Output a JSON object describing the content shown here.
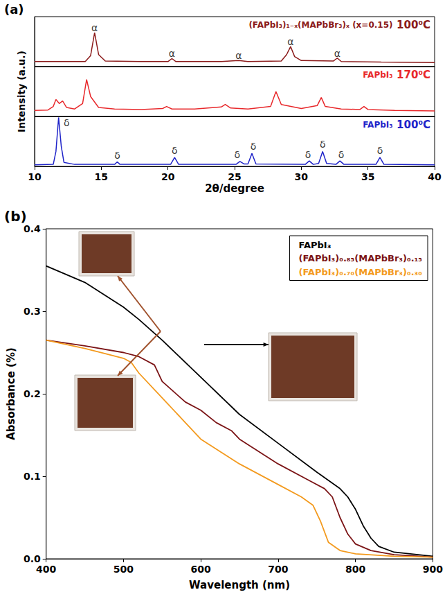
{
  "chart_data": [
    {
      "type": "line",
      "panel_label": "(a)",
      "x_label": "2θ/degree",
      "y_label": "Intensity (a.u.)",
      "xlim": [
        10,
        40
      ],
      "xticks": [
        10,
        15,
        20,
        25,
        30,
        35,
        40
      ],
      "ylim": [
        0,
        100
      ],
      "tick_labels": "x",
      "series": [
        {
          "name": "(FAPbI₃)₁₋ₓ(MAPbBr₃)ₓ (x=0.15)",
          "temperature": "100⁰C",
          "color": "#8b1a1a",
          "x": [
            10,
            12,
            13.8,
            14.2,
            14.5,
            14.8,
            15.3,
            18,
            20,
            20.3,
            20.6,
            24,
            25.3,
            26,
            28.5,
            28.9,
            29.2,
            29.5,
            30,
            32.4,
            32.7,
            33,
            36,
            40
          ],
          "values": [
            10,
            10,
            10,
            22,
            68,
            24,
            11,
            10,
            10,
            16,
            10,
            10,
            12,
            10,
            11,
            24,
            40,
            20,
            12,
            11,
            17,
            10,
            9,
            8
          ],
          "peaks": [
            {
              "x": 14.5,
              "y": 78,
              "label": "α"
            },
            {
              "x": 20.3,
              "y": 26,
              "label": "α"
            },
            {
              "x": 25.3,
              "y": 22,
              "label": "α"
            },
            {
              "x": 29.2,
              "y": 50,
              "label": "α"
            },
            {
              "x": 32.7,
              "y": 27,
              "label": "α"
            }
          ]
        },
        {
          "name": "FAPbI₃",
          "temperature": "170⁰C",
          "color": "#e8282b",
          "x": [
            10,
            11,
            11.4,
            11.6,
            11.85,
            12.1,
            12.4,
            13,
            13.6,
            13.9,
            14.2,
            14.8,
            16,
            18,
            19.6,
            19.9,
            20.3,
            22,
            24,
            24.3,
            24.7,
            26,
            27.7,
            28.1,
            28.5,
            30,
            31.2,
            31.5,
            31.8,
            33,
            34.4,
            34.7,
            35,
            37,
            40
          ],
          "values": [
            12,
            13,
            20,
            34,
            26,
            31,
            18,
            15,
            26,
            74,
            40,
            18,
            15,
            14,
            16,
            20,
            15,
            15,
            19,
            24,
            17,
            15,
            20,
            50,
            24,
            16,
            22,
            38,
            20,
            15,
            14,
            20,
            14,
            12,
            11
          ]
        },
        {
          "name": "FAPbI₃",
          "temperature": "100⁰C",
          "color": "#1f24c9",
          "x": [
            10,
            11.4,
            11.6,
            11.8,
            12.0,
            12.2,
            13,
            16,
            16.2,
            16.4,
            20.2,
            20.5,
            20.8,
            25.1,
            25.4,
            25.7,
            26.0,
            26.3,
            26.6,
            30.3,
            30.6,
            30.9,
            31.3,
            31.6,
            31.9,
            32.6,
            32.9,
            33.2,
            35.6,
            35.9,
            36.2,
            40
          ],
          "values": [
            3,
            4,
            30,
            98,
            40,
            8,
            4,
            4,
            9,
            4,
            4,
            18,
            4,
            4,
            10,
            5,
            5,
            26,
            5,
            4,
            11,
            4,
            6,
            30,
            6,
            4,
            11,
            4,
            4,
            18,
            4,
            3
          ],
          "peaks": [
            {
              "x": 12.4,
              "y": 88,
              "label": "δ"
            },
            {
              "x": 16.2,
              "y": 22,
              "label": "δ"
            },
            {
              "x": 20.5,
              "y": 32,
              "label": "δ"
            },
            {
              "x": 25.2,
              "y": 24,
              "label": "δ"
            },
            {
              "x": 26.4,
              "y": 40,
              "label": "δ"
            },
            {
              "x": 30.5,
              "y": 24,
              "label": "δ"
            },
            {
              "x": 31.6,
              "y": 44,
              "label": "δ"
            },
            {
              "x": 33.0,
              "y": 24,
              "label": "δ"
            },
            {
              "x": 35.9,
              "y": 32,
              "label": "δ"
            }
          ]
        }
      ]
    },
    {
      "type": "line",
      "panel_label": "(b)",
      "x_label": "Wavelength (nm)",
      "y_label": "Absorbance (%)",
      "xlim": [
        400,
        900
      ],
      "xticks": [
        400,
        500,
        600,
        700,
        800,
        900
      ],
      "ylim": [
        0,
        0.4
      ],
      "yticks": [
        {
          "value": 0,
          "label": "0.0"
        },
        0.1,
        0.2,
        0.3,
        0.4
      ],
      "legend": "top-right",
      "series": [
        {
          "name": "FAPbI₃",
          "color": "#000000",
          "x": [
            400,
            450,
            500,
            520,
            550,
            600,
            650,
            700,
            750,
            780,
            790,
            800,
            810,
            820,
            830,
            850,
            900
          ],
          "values": [
            0.355,
            0.335,
            0.305,
            0.29,
            0.265,
            0.22,
            0.175,
            0.14,
            0.105,
            0.085,
            0.075,
            0.06,
            0.04,
            0.025,
            0.015,
            0.008,
            0.003
          ]
        },
        {
          "name": "(FAPbI₃)₀.₈₅(MAPbBr₃)₀.₁₅",
          "color": "#7b1416",
          "x": [
            400,
            450,
            500,
            520,
            540,
            550,
            580,
            600,
            620,
            640,
            650,
            700,
            740,
            760,
            770,
            780,
            790,
            800,
            820,
            850,
            900
          ],
          "values": [
            0.265,
            0.258,
            0.25,
            0.245,
            0.235,
            0.215,
            0.19,
            0.18,
            0.165,
            0.155,
            0.145,
            0.115,
            0.095,
            0.085,
            0.075,
            0.05,
            0.03,
            0.018,
            0.01,
            0.005,
            0.002
          ]
        },
        {
          "name": "(FAPbI₃)₀.₇₀(MAPbBr₃)₀.₃₀",
          "color": "#f39a1e",
          "x": [
            400,
            450,
            500,
            510,
            520,
            550,
            580,
            600,
            650,
            700,
            730,
            745,
            755,
            765,
            780,
            800,
            850,
            900
          ],
          "values": [
            0.265,
            0.255,
            0.243,
            0.238,
            0.225,
            0.195,
            0.165,
            0.145,
            0.115,
            0.09,
            0.075,
            0.065,
            0.045,
            0.02,
            0.01,
            0.006,
            0.003,
            0.002
          ]
        }
      ]
    }
  ]
}
